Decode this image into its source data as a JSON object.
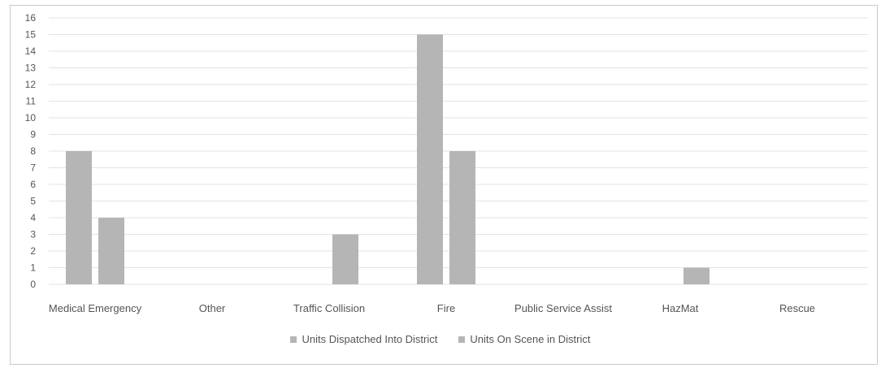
{
  "chart_data": {
    "type": "bar",
    "categories": [
      "Medical Emergency",
      "Other",
      "Traffic Collision",
      "Fire",
      "Public Service Assist",
      "HazMat",
      "Rescue"
    ],
    "series": [
      {
        "name": "Units Dispatched Into District",
        "values": [
          8,
          0,
          0,
          15,
          0,
          0,
          0
        ],
        "color": "#b5b5b5"
      },
      {
        "name": "Units On Scene in District",
        "values": [
          4,
          0,
          3,
          8,
          0,
          1,
          0
        ],
        "color": "#b5b5b5"
      }
    ],
    "ylim": [
      0,
      16
    ],
    "yticks": [
      0,
      1,
      2,
      3,
      4,
      5,
      6,
      7,
      8,
      9,
      10,
      11,
      12,
      13,
      14,
      15,
      16
    ],
    "grid": true,
    "legend_position": "bottom"
  }
}
